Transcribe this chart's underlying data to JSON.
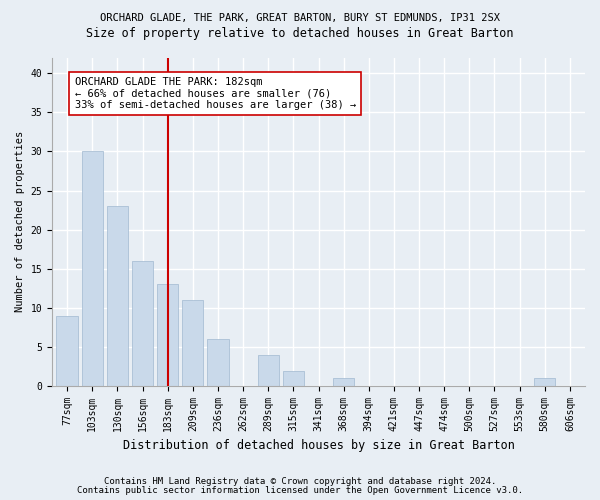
{
  "title": "ORCHARD GLADE, THE PARK, GREAT BARTON, BURY ST EDMUNDS, IP31 2SX",
  "subtitle": "Size of property relative to detached houses in Great Barton",
  "xlabel": "Distribution of detached houses by size in Great Barton",
  "ylabel": "Number of detached properties",
  "categories": [
    "77sqm",
    "103sqm",
    "130sqm",
    "156sqm",
    "183sqm",
    "209sqm",
    "236sqm",
    "262sqm",
    "289sqm",
    "315sqm",
    "341sqm",
    "368sqm",
    "394sqm",
    "421sqm",
    "447sqm",
    "474sqm",
    "500sqm",
    "527sqm",
    "553sqm",
    "580sqm",
    "606sqm"
  ],
  "values": [
    9,
    30,
    23,
    16,
    13,
    11,
    6,
    0,
    4,
    2,
    0,
    1,
    0,
    0,
    0,
    0,
    0,
    0,
    0,
    1,
    0
  ],
  "bar_color": "#c9d9ea",
  "bar_edge_color": "#a0b8d0",
  "vline_x_index": 4,
  "vline_color": "#cc0000",
  "annotation_text": "ORCHARD GLADE THE PARK: 182sqm\n← 66% of detached houses are smaller (76)\n33% of semi-detached houses are larger (38) →",
  "annotation_bbox_color": "white",
  "annotation_bbox_edge_color": "#cc0000",
  "ylim": [
    0,
    42
  ],
  "yticks": [
    0,
    5,
    10,
    15,
    20,
    25,
    30,
    35,
    40
  ],
  "footer_line1": "Contains HM Land Registry data © Crown copyright and database right 2024.",
  "footer_line2": "Contains public sector information licensed under the Open Government Licence v3.0.",
  "background_color": "#e8eef4",
  "plot_bg_color": "#e8eef4",
  "grid_color": "white",
  "title_fontsize": 7.5,
  "subtitle_fontsize": 8.5,
  "xlabel_fontsize": 8.5,
  "ylabel_fontsize": 7.5,
  "tick_fontsize": 7,
  "annotation_fontsize": 7.5,
  "footer_fontsize": 6.5
}
